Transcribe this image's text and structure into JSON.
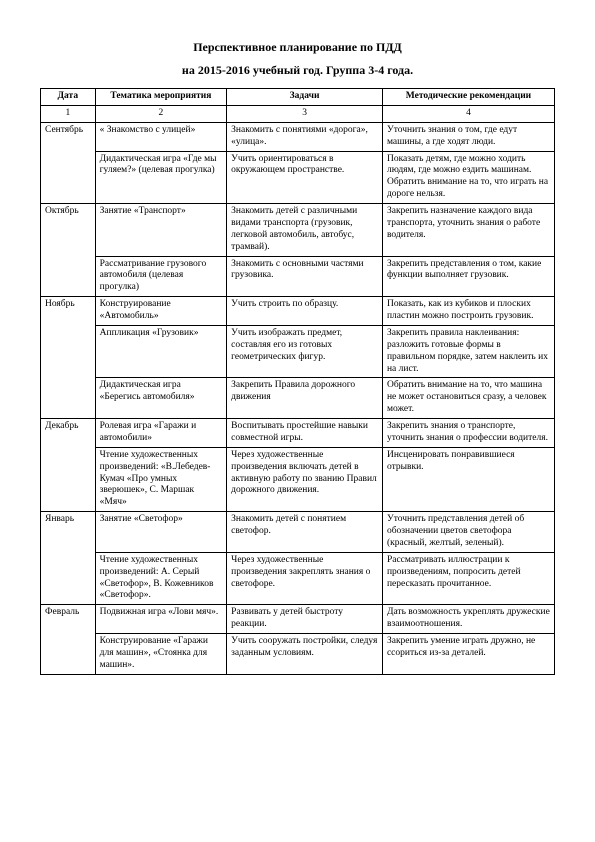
{
  "title": "Перспективное планирование по ПДД",
  "subtitle": "на 2015-2016 учебный год. Группа 3-4 года.",
  "headers": [
    "Дата",
    "Тематика мероприятия",
    "Задачи",
    "Методические рекомендации"
  ],
  "numrow": [
    "1",
    "2",
    "3",
    "4"
  ],
  "rows": [
    {
      "date": "Сентябрь",
      "span": 2,
      "topic": "« Знакомство с улицей»",
      "tasks": "Знакомить с понятиями «дорога», «улица».",
      "method": "Уточнить знания о том, где едут машины, а где ходят люди."
    },
    {
      "topic": "Дидактическая игра «Где мы гуляем?» (целевая прогулка)",
      "tasks": "Учить ориентироваться в окружающем пространстве.",
      "method": "Показать детям, где можно ходить людям, где  можно ездить машинам. Обратить внимание на то, что играть на дороге нельзя."
    },
    {
      "date": "Октябрь",
      "span": 2,
      "topic": "Занятие «Транспорт»",
      "tasks": "Знакомить детей с различными видами транспорта (грузовик, легковой автомобиль, автобус, трамвай).",
      "method": "Закрепить назначение каждого вида транспорта, уточнить знания о работе водителя."
    },
    {
      "topic": "Рассматривание грузового автомобиля (целевая прогулка)",
      "tasks": "Знакомить с основными частями грузовика.",
      "method": "Закрепить представления о том, какие функции выполняет грузовик."
    },
    {
      "date": "Ноябрь",
      "span": 3,
      "topic": "Конструирование «Автомобиль»",
      "tasks": "Учить строить по образцу.",
      "method": "Показать, как из кубиков и плоских пластин можно построить грузовик."
    },
    {
      "topic": "Аппликация «Грузовик»",
      "tasks": "Учить изображать предмет, составляя его из готовых геометрических фигур.",
      "method": " Закрепить правила наклеивания: разложить готовые формы в правильном порядке, затем наклеить их на лист."
    },
    {
      "topic": "Дидактическая игра «Берегись автомобиля»",
      "tasks": "Закрепить Правила дорожного движения",
      "method": "Обратить внимание на то, что машина не может остановиться сразу, а человек может."
    },
    {
      "date": "Декабрь",
      "span": 2,
      "topic": "Ролевая игра «Гаражи и автомобили»",
      "tasks": "Воспитывать простейшие навыки совместной игры.",
      "method": "Закрепить знания о транспорте, уточнить знания о профессии водителя."
    },
    {
      "topic": "Чтение художественных произведений: «В.Лебедев-Кумач «Про умных зверюшек», С. Маршак «Мяч»",
      "tasks": "Через художественные произведения включать детей в активную работу по званию Правил дорожного движения.",
      "method": "Инсценировать понравившиеся отрывки."
    },
    {
      "date": "Январь",
      "span": 2,
      "topic": "Занятие «Светофор»",
      "tasks": "Знакомить детей с понятием светофор.",
      "method": "Уточнить представления детей об обозначении  цветов светофора (красный, желтый, зеленый)."
    },
    {
      "topic": "Чтение художественных произведений: А. Серый «Светофор», В. Кожевников «Светофор».",
      "tasks": "Через художественные произведения закреплять знания о светофоре.",
      "method": "Рассматривать иллюстрации к произведениям, попросить детей пересказать прочитанное."
    },
    {
      "date": "Февраль",
      "span": 2,
      "topic": "Подвижная игра «Лови мяч».",
      "tasks": "Развивать у детей быстроту реакции.",
      "method": "Дать возможность укреплять дружеские взаимоотношения."
    },
    {
      "topic": "Конструирование «Гаражи для машин», «Стоянка для машин».",
      "tasks": "Учить сооружать постройки, следуя заданным условиям.",
      "method": "Закрепить умение играть дружно, не ссориться из-за деталей."
    }
  ]
}
